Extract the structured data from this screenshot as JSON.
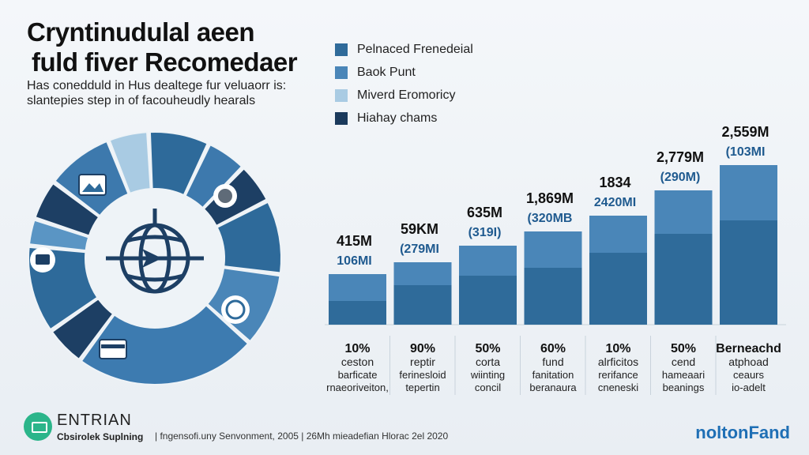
{
  "header": {
    "title_line1": "Cryntinudulal aeen",
    "title_line2": "fuld fiver Recomedaer",
    "subtitle_line1": "Has conedduld in Hus dealtege fur veluaorr is:",
    "subtitle_line2": "slantepies step in of facouheudly hearals"
  },
  "legend": [
    {
      "label": "Pelnaced Frenedeial",
      "color": "#2f6b9a"
    },
    {
      "label": "Baok Punt",
      "color": "#4a86b8"
    },
    {
      "label": "Miverd Eromoricy",
      "color": "#a9cbe3"
    },
    {
      "label": "Hiahay chams",
      "color": "#1b3a5c"
    }
  ],
  "chart_data": {
    "type": "bar",
    "categories": [
      "ceston",
      "reptir",
      "corta",
      "fund",
      "alrficitos",
      "cend",
      "atphoad"
    ],
    "series": [
      {
        "values": [
          30,
          50,
          62,
          72,
          91,
          115,
          132
        ]
      },
      {
        "values": [
          34,
          29,
          38,
          46,
          47,
          55,
          70
        ]
      }
    ],
    "ylim": [
      0,
      310
    ],
    "value_labels": [
      "415M",
      "59KM",
      "635M",
      "1,869M",
      "1834",
      "2,779M",
      "2,559M"
    ],
    "sub_labels": [
      "106MI",
      "(279MI",
      "(319I)",
      "(320MB",
      "2420MI",
      "(290M)",
      "(103MI"
    ],
    "percents": [
      "10%",
      "90%",
      "50%",
      "60%",
      "10%",
      "50%",
      "Berneachd"
    ],
    "desc_lines1": [
      "barficate",
      "ferinesloid",
      "wiinting",
      "fanitation",
      "rerifance",
      "hameaari",
      "ceaurs"
    ],
    "desc_lines2": [
      "rnaeoriveiton,",
      "tepertin",
      "concil",
      "beranaura",
      "cneneski",
      "beanings",
      "io-adelt"
    ]
  },
  "donut": {
    "segments": [
      {
        "value": 9,
        "color": "#2e6a9a"
      },
      {
        "value": 6,
        "color": "#3d79ad"
      },
      {
        "value": 6,
        "color": "#1d3f64"
      },
      {
        "value": 11,
        "color": "#2e6a9a"
      },
      {
        "value": 11,
        "color": "#4a86b8"
      },
      {
        "value": 27,
        "color": "#3d7bb0"
      },
      {
        "value": 6,
        "color": "#1d3f64"
      },
      {
        "value": 13,
        "color": "#2e6a9a"
      },
      {
        "value": 4,
        "color": "#5a95c4"
      },
      {
        "value": 6,
        "color": "#1d3f64"
      },
      {
        "value": 10,
        "color": "#3d79ad"
      },
      {
        "value": 6,
        "color": "#a9cbe3"
      }
    ]
  },
  "footer": {
    "brand": "ENTRIAN",
    "tagline": "Cbsirolek Suplning",
    "note": "| fngensofi.uny Senvonment, 2005 | 26Mh mieadefian Hlorac 2el 2020",
    "logo": "noltonFand"
  }
}
